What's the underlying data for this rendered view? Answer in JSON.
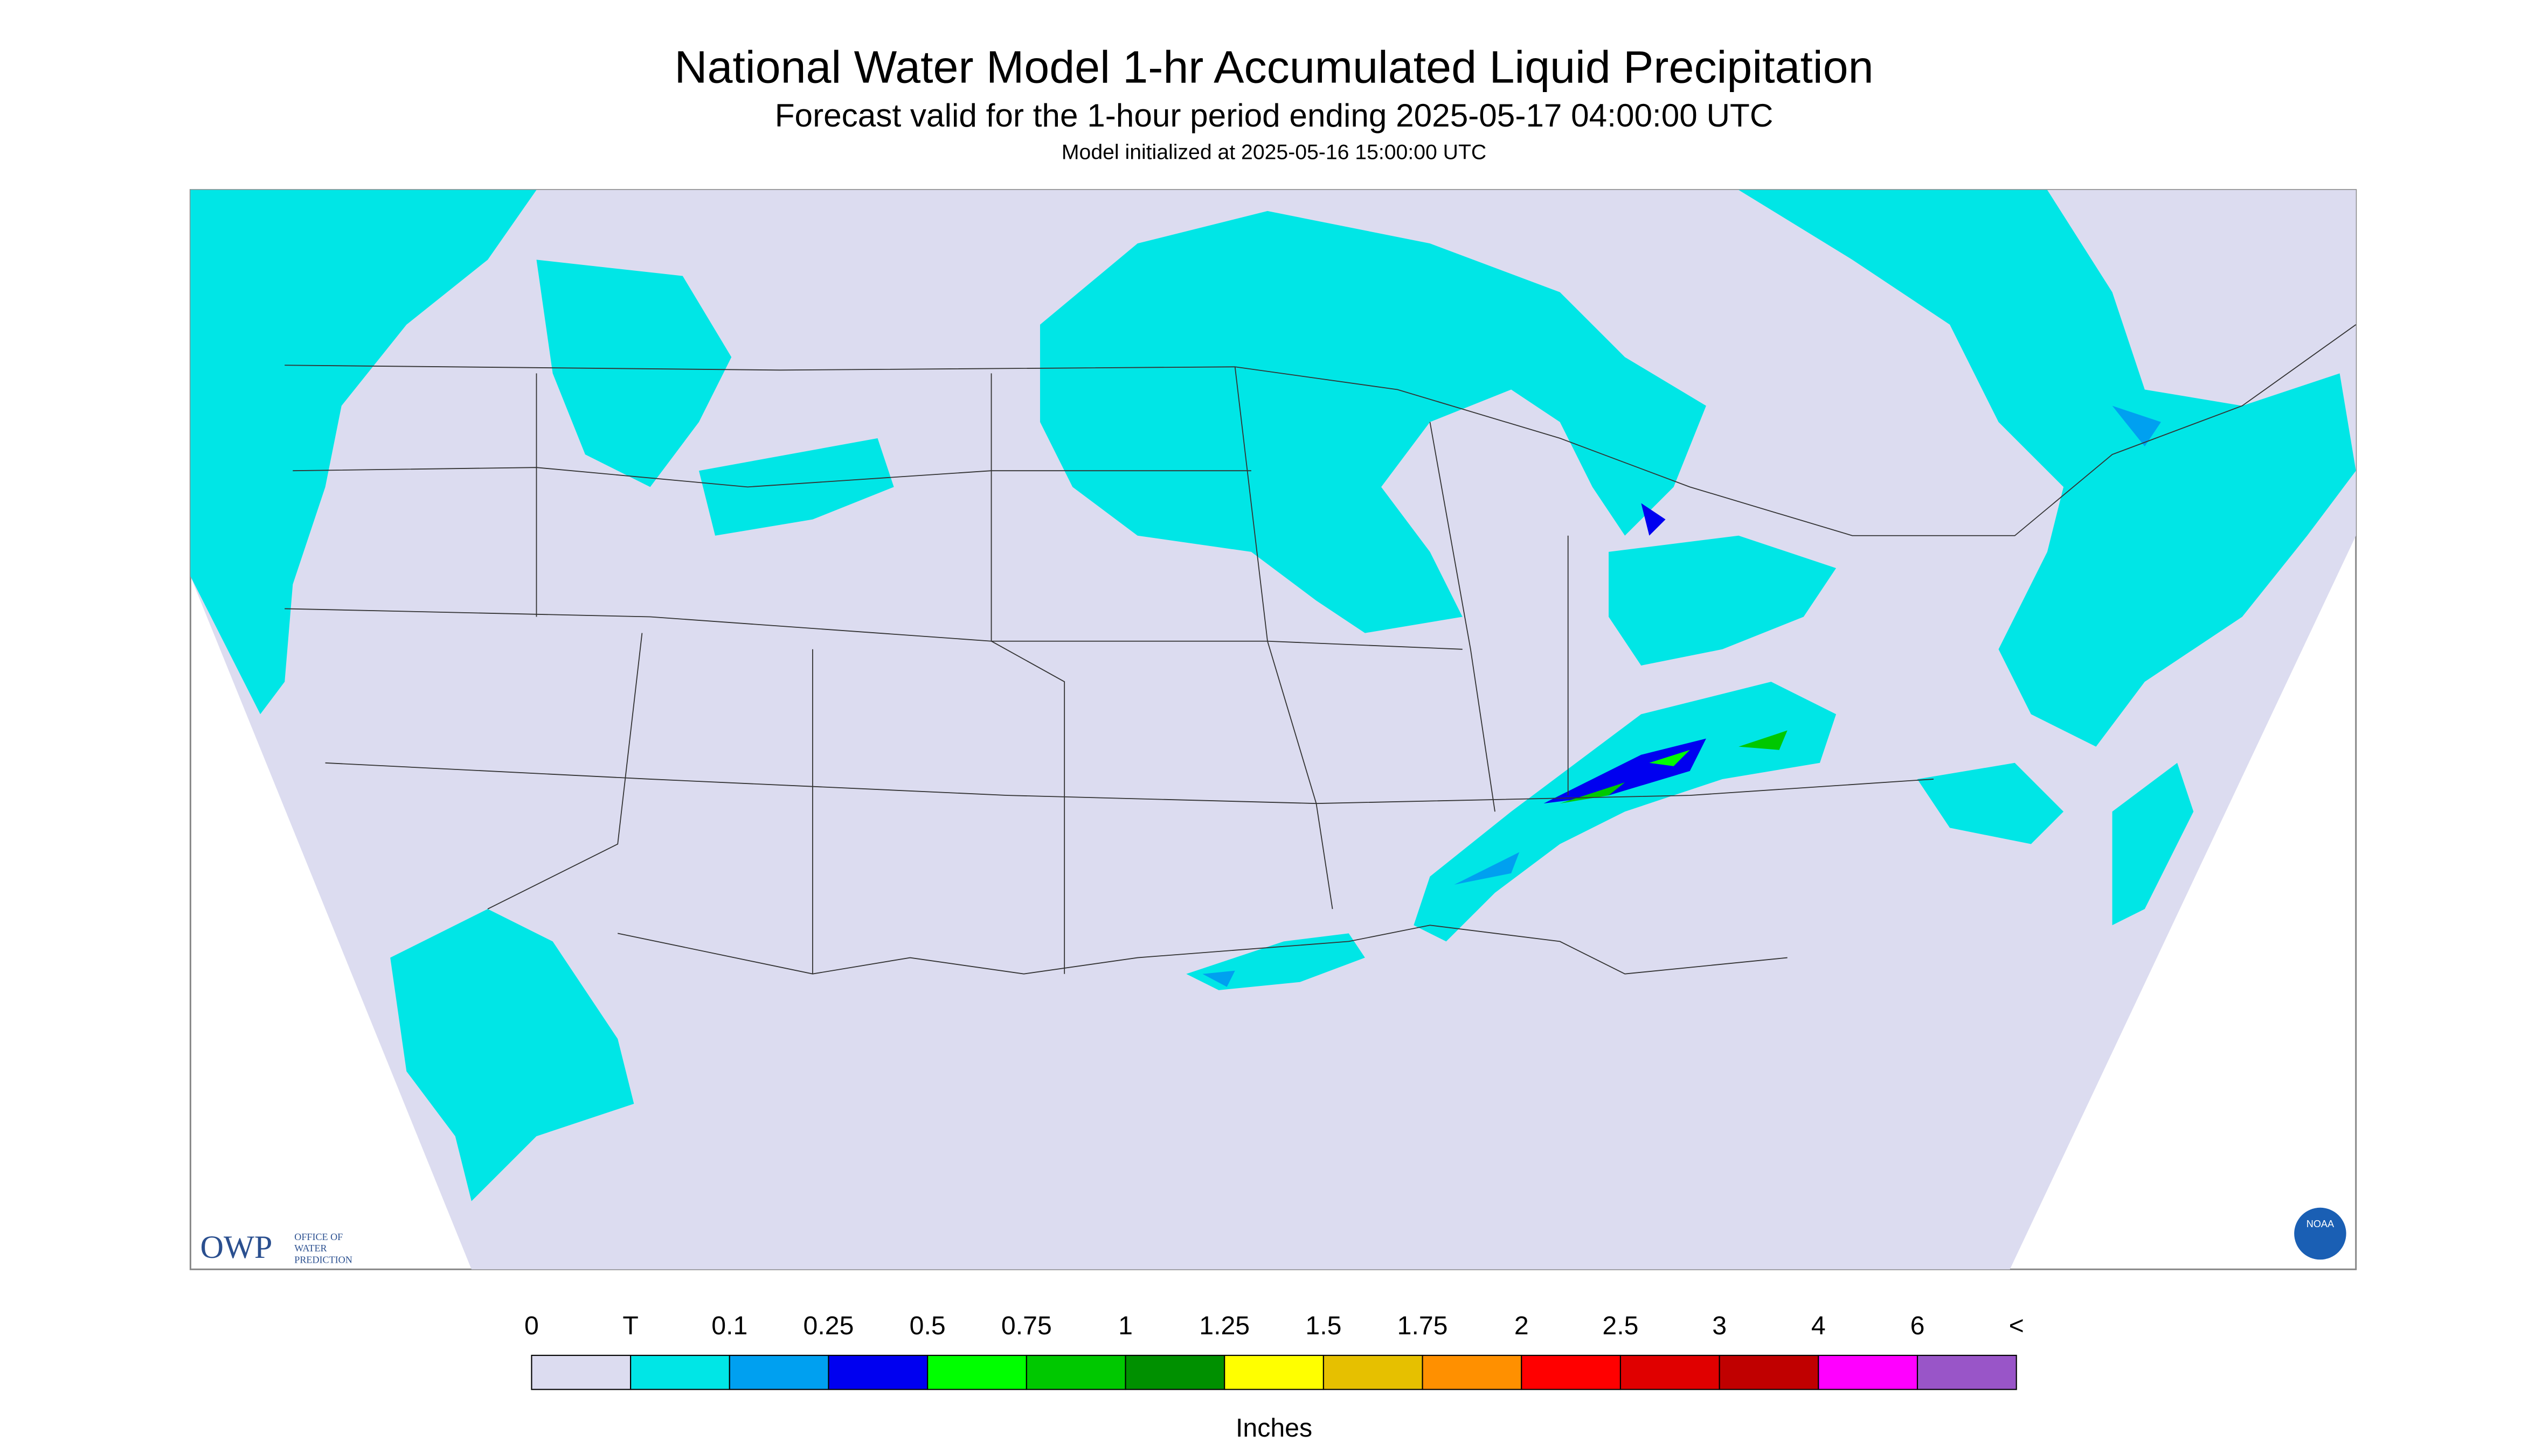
{
  "header": {
    "title": "National Water Model 1-hr Accumulated Liquid Precipitation",
    "subtitle": "Forecast valid for the 1-hour period ending 2025-05-17 04:00:00 UTC",
    "note": "Model initialized at 2025-05-16 15:00:00 UTC"
  },
  "logos": {
    "owp": "OWP",
    "owp_line1": "OFFICE OF",
    "owp_line2": "WATER",
    "owp_line3": "PREDICTION",
    "noaa": "NOAA"
  },
  "legend": {
    "labels": [
      "0",
      "T",
      "0.1",
      "0.25",
      "0.5",
      "0.75",
      "1",
      "1.25",
      "1.5",
      "1.75",
      "2",
      "2.5",
      "3",
      "4",
      "6",
      "<"
    ],
    "colors": [
      "#dcdcf0",
      "#00e6e6",
      "#00a0f0",
      "#0000f0",
      "#00ff00",
      "#00c800",
      "#009000",
      "#ffff00",
      "#e6c000",
      "#ff9000",
      "#ff0000",
      "#e00000",
      "#c00000",
      "#ff00ff",
      "#9955c8"
    ],
    "unit": "Inches"
  }
}
